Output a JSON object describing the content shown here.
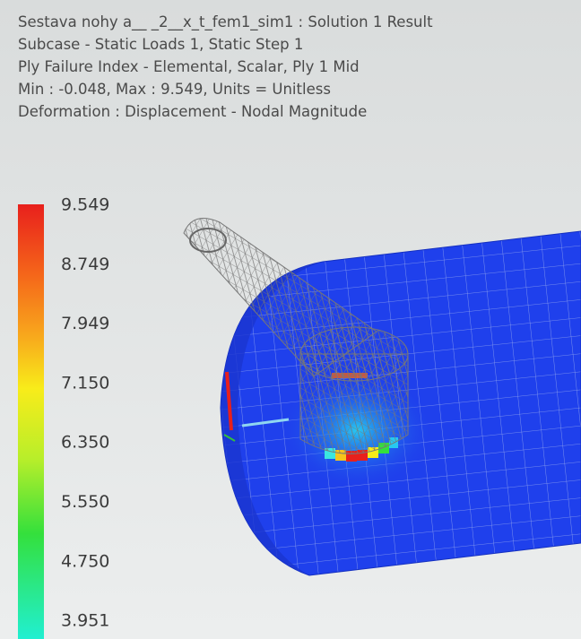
{
  "header": {
    "lines": [
      "Sestava nohy a__ _2__x_t_fem1_sim1 : Solution 1 Result",
      "Subcase - Static Loads 1, Static Step 1",
      "Ply Failure Index - Elemental, Scalar, Ply 1 Mid",
      "Min : -0.048, Max : 9.549, Units = Unitless",
      "Deformation : Displacement - Nodal Magnitude"
    ]
  },
  "legend": {
    "labels": [
      "9.549",
      "8.749",
      "7.949",
      "7.150",
      "6.350",
      "5.550",
      "4.750",
      "3.951"
    ]
  }
}
